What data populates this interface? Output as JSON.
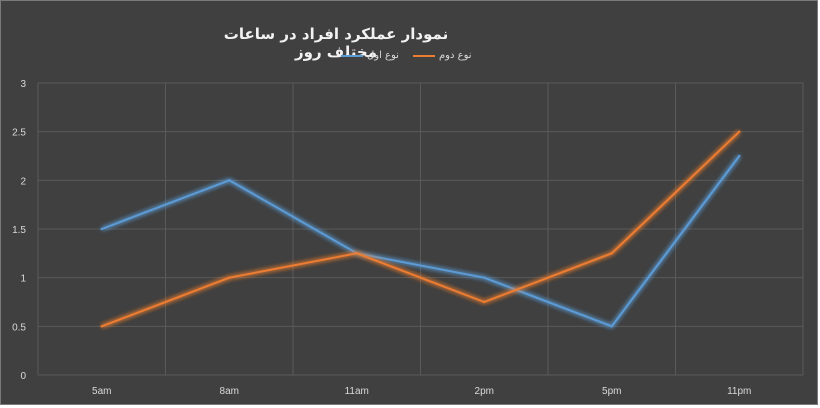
{
  "chart_data": {
    "type": "line",
    "title": "نمودار عملکرد افراد در ساعات مختلف روز",
    "categories": [
      "5am",
      "8am",
      "11am",
      "2pm",
      "5pm",
      "11pm"
    ],
    "series": [
      {
        "name": "نوع اول",
        "color": "#5b9bd5",
        "values": [
          1.5,
          2,
          1.25,
          1,
          0.5,
          2.25
        ]
      },
      {
        "name": "نوع دوم",
        "color": "#ed7d31",
        "values": [
          0.5,
          1,
          1.25,
          0.75,
          1.25,
          2.5
        ]
      }
    ],
    "ylim": [
      0,
      3
    ],
    "yticks": [
      "0",
      "0.5",
      "1",
      "1.5",
      "2",
      "2.5",
      "3"
    ],
    "grid": true,
    "legend_position": "top",
    "background": "#404040"
  }
}
